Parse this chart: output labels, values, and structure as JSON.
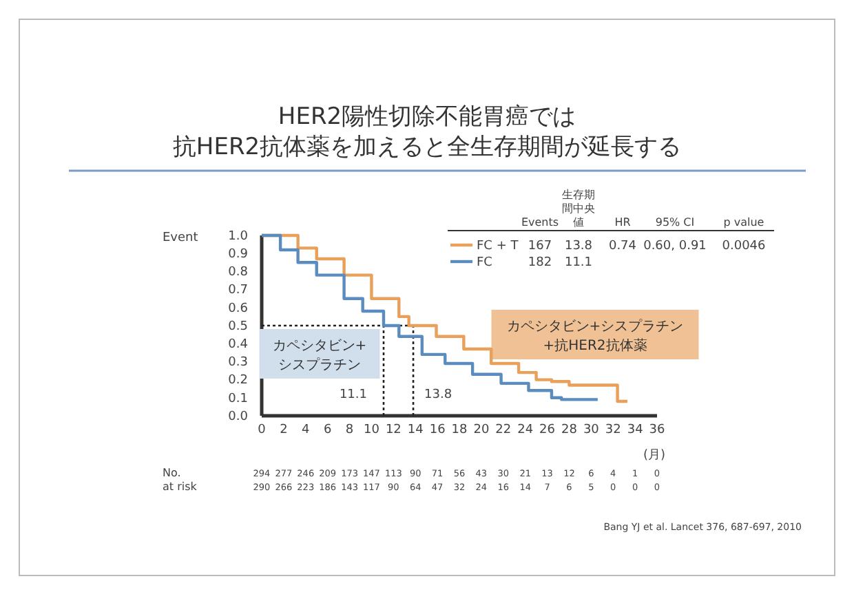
{
  "chart_data": {
    "type": "step",
    "title": "HER2陽性切除不能胃癌では",
    "subtitle": "抗HER2抗体薬を加えると全生存期間が延長する",
    "ylabel": "Event",
    "xlabel": "(月)",
    "xlim": [
      0,
      36
    ],
    "xticks": [
      0,
      2,
      4,
      6,
      8,
      10,
      12,
      14,
      16,
      18,
      20,
      22,
      24,
      26,
      28,
      30,
      32,
      34,
      36
    ],
    "ylim": [
      0,
      1
    ],
    "yticks": [
      {
        "value": 0,
        "label": "0.0"
      },
      0.1,
      0.2,
      0.3,
      0.4,
      0.5,
      0.6,
      0.7,
      0.8,
      0.9,
      {
        "value": 1,
        "label": "1.0"
      }
    ],
    "grid": false,
    "legend": "top right",
    "series": [
      {
        "name": "FC + T",
        "color": "#e8a05a",
        "x": [
          0,
          1,
          3.3,
          5,
          7.5,
          10,
          12.5,
          13.4,
          15.9,
          18.4,
          20.9,
          23.4,
          25,
          26.4,
          27.6,
          28,
          32.4,
          33.3
        ],
        "values": [
          1,
          1,
          0.93,
          0.87,
          0.78,
          0.65,
          0.55,
          0.5,
          0.44,
          0.37,
          0.29,
          0.24,
          0.2,
          0.19,
          0.19,
          0.17,
          0.08,
          0.08
        ]
      },
      {
        "name": "FC",
        "color": "#5a8cc0",
        "x": [
          0,
          0.4,
          1.7,
          3.3,
          5,
          7.5,
          9.2,
          11.1,
          12.5,
          14.6,
          16.7,
          19.2,
          21.8,
          24.3,
          26.4,
          27.3,
          30.6
        ],
        "values": [
          1,
          1,
          0.92,
          0.85,
          0.78,
          0.65,
          0.58,
          0.5,
          0.44,
          0.34,
          0.29,
          0.23,
          0.18,
          0.14,
          0.1,
          0.09,
          0.09
        ]
      }
    ],
    "ref_lines": [
      {
        "axis": "y",
        "value": 0.5,
        "label": null,
        "line_style": "dotted"
      },
      {
        "axis": "x",
        "value": 11.1,
        "label": "11.1",
        "line_style": "dotted"
      },
      {
        "axis": "x",
        "value": 13.8,
        "label": "13.8",
        "line_style": "dotted"
      }
    ],
    "annotations": [
      "Events",
      "生存期間中央値",
      "HR",
      "95% CI",
      "p value",
      "167",
      "13.8",
      "0.74",
      "0.60, 0.91",
      "0.0046",
      "182",
      "11.1",
      "カペシタビン+シスプラチン",
      "カペシタビン+シスプラチン+抗HER2抗体薬",
      "No.",
      "at risk",
      "294 277 246 209 173 147 113 90 71 56 43 30 21 13 12 6 4 1 0",
      "290 266 223 186 143 117 90 64 47 32 24 16 14 7 6 5 0 0 0",
      "Bang YJ et al. Lancet 376, 687-697, 2010"
    ]
  }
}
